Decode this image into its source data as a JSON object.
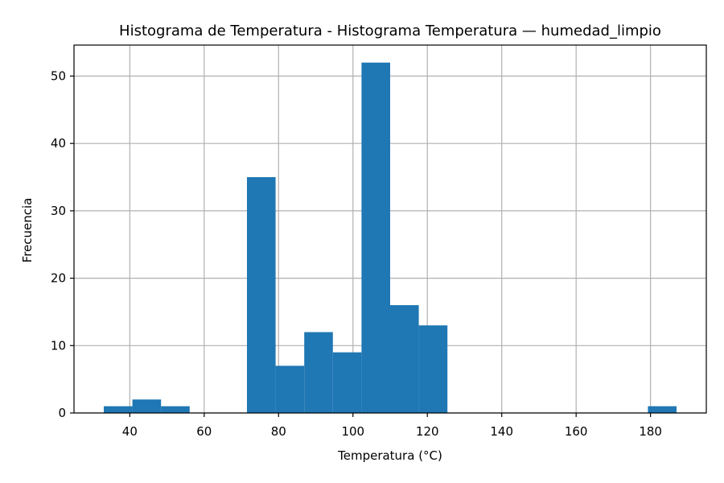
{
  "chart_data": {
    "type": "bar",
    "title": "Histograma de Temperatura - Histograma Temperatura — humedad_limpio",
    "xlabel": "Temperatura (°C)",
    "ylabel": "Frecuencia",
    "xlim": [
      25,
      195
    ],
    "ylim": [
      0,
      54.6
    ],
    "xticks": [
      "40",
      "60",
      "80",
      "100",
      "120",
      "140",
      "160",
      "180"
    ],
    "yticks": [
      "0",
      "10",
      "20",
      "30",
      "40",
      "50"
    ],
    "grid": true,
    "bar_color": "#1f77b4",
    "bins": [
      {
        "x0": 33.0,
        "x1": 40.7,
        "count": 1
      },
      {
        "x0": 40.7,
        "x1": 48.4,
        "count": 2
      },
      {
        "x0": 48.4,
        "x1": 56.1,
        "count": 1
      },
      {
        "x0": 56.1,
        "x1": 63.8,
        "count": 0
      },
      {
        "x0": 63.8,
        "x1": 71.5,
        "count": 0
      },
      {
        "x0": 71.5,
        "x1": 79.2,
        "count": 35
      },
      {
        "x0": 79.2,
        "x1": 86.9,
        "count": 7
      },
      {
        "x0": 86.9,
        "x1": 94.6,
        "count": 12
      },
      {
        "x0": 94.6,
        "x1": 102.3,
        "count": 9
      },
      {
        "x0": 102.3,
        "x1": 110.0,
        "count": 52
      },
      {
        "x0": 110.0,
        "x1": 117.7,
        "count": 16
      },
      {
        "x0": 117.7,
        "x1": 125.4,
        "count": 13
      },
      {
        "x0": 125.4,
        "x1": 133.1,
        "count": 0
      },
      {
        "x0": 133.1,
        "x1": 140.8,
        "count": 0
      },
      {
        "x0": 140.8,
        "x1": 148.5,
        "count": 0
      },
      {
        "x0": 148.5,
        "x1": 156.2,
        "count": 0
      },
      {
        "x0": 156.2,
        "x1": 163.9,
        "count": 0
      },
      {
        "x0": 163.9,
        "x1": 171.6,
        "count": 0
      },
      {
        "x0": 171.6,
        "x1": 179.3,
        "count": 0
      },
      {
        "x0": 179.3,
        "x1": 187.0,
        "count": 1
      }
    ]
  }
}
